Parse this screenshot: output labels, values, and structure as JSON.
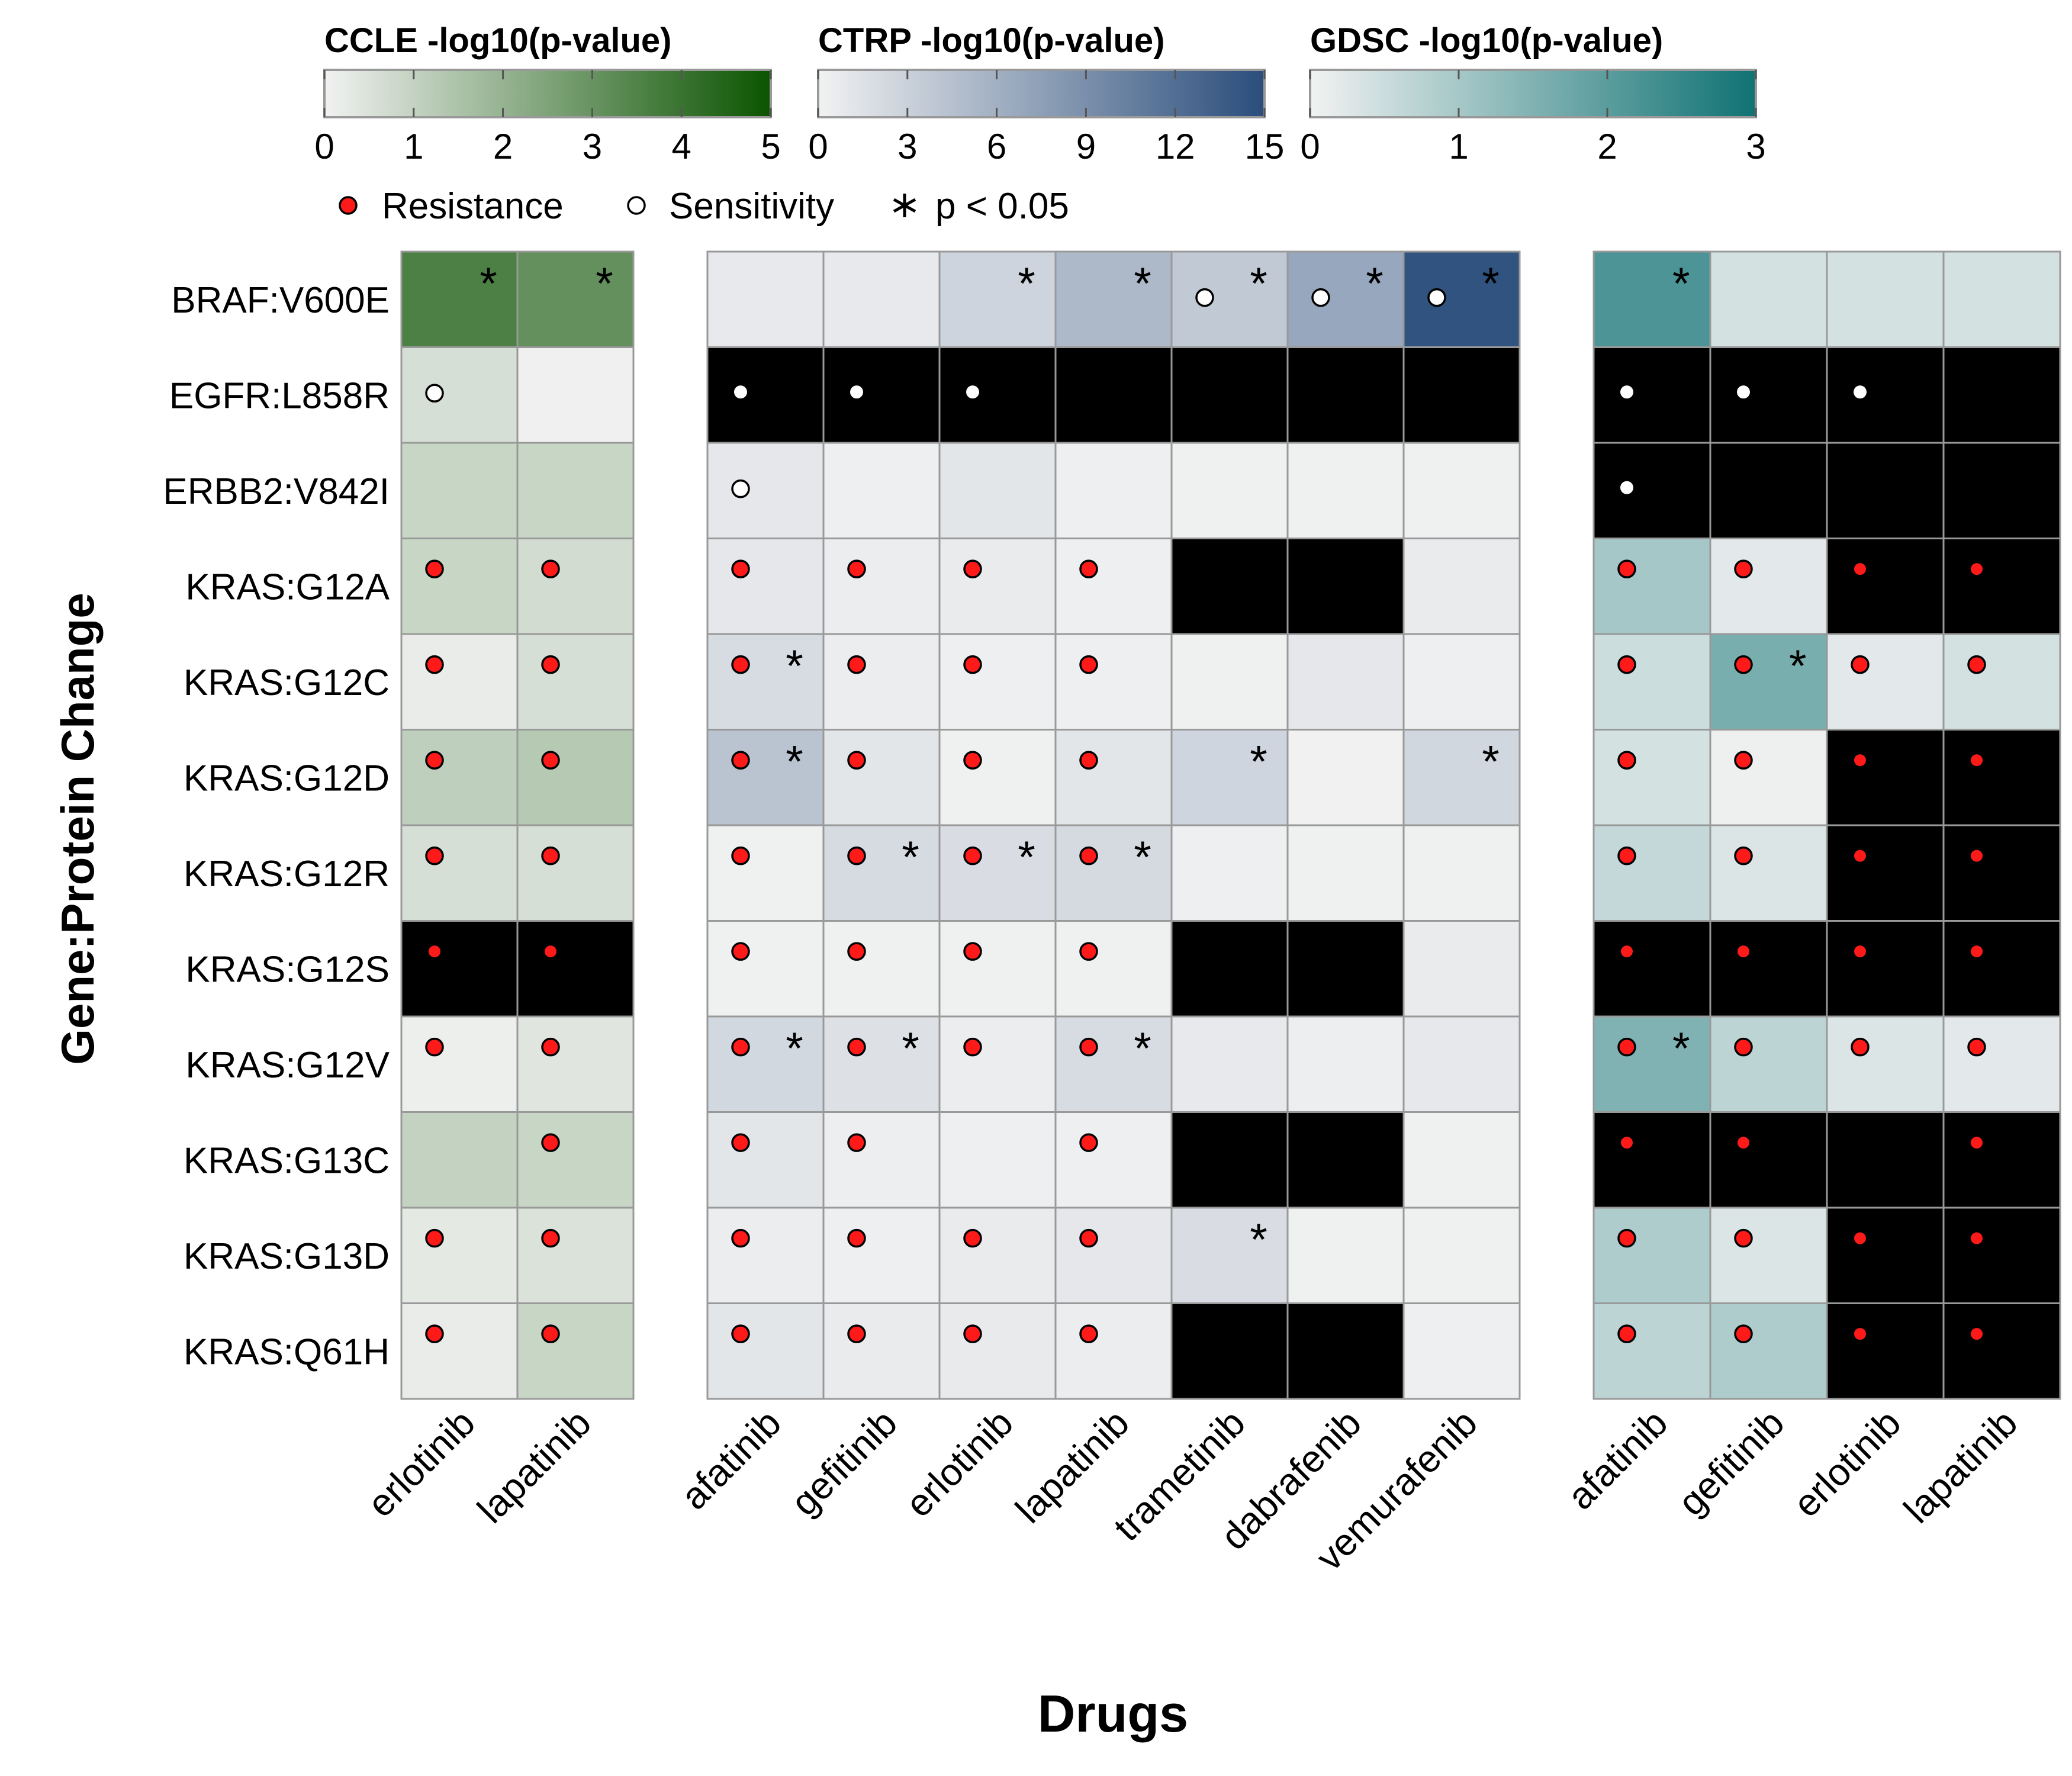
{
  "chart_data": {
    "type": "heatmap",
    "xlabel": "Drugs",
    "ylabel": "Gene:Protein Change",
    "rows": [
      "BRAF:V600E",
      "EGFR:L858R",
      "ERBB2:V842I",
      "KRAS:G12A",
      "KRAS:G12C",
      "KRAS:G12D",
      "KRAS:G12R",
      "KRAS:G12S",
      "KRAS:G12V",
      "KRAS:G13C",
      "KRAS:G13D",
      "KRAS:Q61H"
    ],
    "legend_items": [
      {
        "label": "Resistance",
        "marker": "filled-red-dot"
      },
      {
        "label": "Sensitivity",
        "marker": "open-dot"
      },
      {
        "label": "p < 0.05",
        "marker": "asterisk"
      }
    ],
    "missing_color": "#000000",
    "panels": [
      {
        "dataset": "CCLE",
        "colorbar_title": "CCLE -log10(p-value)",
        "colorbar_ticks": [
          "0",
          "1",
          "2",
          "3",
          "4",
          "5"
        ],
        "range": [
          0,
          5
        ],
        "color_low": "#F2F2F2",
        "color_high": "#0B5400",
        "drugs": [
          "erlotinib",
          "lapatinib"
        ],
        "values": [
          [
            3.6,
            3.1
          ],
          [
            0.6,
            0.05
          ],
          [
            0.9,
            0.9
          ],
          [
            0.9,
            0.7
          ],
          [
            0.2,
            0.6
          ],
          [
            1.1,
            1.3
          ],
          [
            0.6,
            0.6
          ],
          [
            null,
            null
          ],
          [
            0.1,
            0.4
          ],
          [
            1.0,
            0.9
          ],
          [
            0.3,
            0.5
          ],
          [
            0.2,
            0.9
          ]
        ],
        "markers": [
          [
            "",
            ""
          ],
          [
            "sensitivity",
            ""
          ],
          [
            "",
            ""
          ],
          [
            "resistance",
            "resistance"
          ],
          [
            "resistance",
            "resistance"
          ],
          [
            "resistance",
            "resistance"
          ],
          [
            "resistance",
            "resistance"
          ],
          [
            "resistance",
            "resistance"
          ],
          [
            "resistance",
            "resistance"
          ],
          [
            "",
            "resistance"
          ],
          [
            "resistance",
            "resistance"
          ],
          [
            "resistance",
            "resistance"
          ]
        ],
        "significant": [
          [
            true,
            true
          ],
          [
            false,
            false
          ],
          [
            false,
            false
          ],
          [
            false,
            false
          ],
          [
            false,
            false
          ],
          [
            false,
            false
          ],
          [
            false,
            false
          ],
          [
            false,
            false
          ],
          [
            false,
            false
          ],
          [
            false,
            false
          ],
          [
            false,
            false
          ],
          [
            false,
            false
          ]
        ]
      },
      {
        "dataset": "CTRP",
        "colorbar_title": "CTRP -log10(p-value)",
        "colorbar_ticks": [
          "0",
          "3",
          "6",
          "9",
          "12",
          "15"
        ],
        "range": [
          0,
          15
        ],
        "color_low": "#F2F2F2",
        "color_high": "#2A4D7C",
        "drugs": [
          "afatinib",
          "gefitinib",
          "erlotinib",
          "lapatinib",
          "trametinib",
          "dabrafenib",
          "vemurafenib"
        ],
        "values": [
          [
            0.8,
            0.8,
            2.7,
            5.2,
            3.7,
            6.8,
            14.5
          ],
          [
            null,
            null,
            null,
            null,
            null,
            null,
            null
          ],
          [
            1.0,
            0.3,
            1.1,
            0.3,
            0.2,
            0.2,
            0.2
          ],
          [
            1.0,
            0.5,
            0.6,
            0.3,
            null,
            null,
            0.6
          ],
          [
            2.0,
            0.5,
            0.3,
            0.3,
            0.2,
            1.0,
            0.3
          ],
          [
            4.2,
            1.1,
            0.2,
            1.1,
            2.6,
            0.1,
            2.5
          ],
          [
            0.2,
            2.1,
            1.9,
            2.2,
            0.3,
            0.2,
            0.2
          ],
          [
            0.2,
            0.2,
            0.2,
            0.2,
            null,
            null,
            0.6
          ],
          [
            2.4,
            1.6,
            0.5,
            2.0,
            0.8,
            0.4,
            0.9
          ],
          [
            1.1,
            0.4,
            0.3,
            0.3,
            null,
            null,
            0.2
          ],
          [
            0.5,
            0.3,
            0.6,
            1.0,
            1.9,
            0.2,
            0.2
          ],
          [
            1.1,
            0.6,
            0.7,
            0.5,
            null,
            null,
            0.3
          ]
        ],
        "markers": [
          [
            "",
            "",
            "",
            "",
            "sensitivity",
            "sensitivity",
            "sensitivity"
          ],
          [
            "sensitivity",
            "sensitivity",
            "sensitivity",
            "",
            "",
            "",
            ""
          ],
          [
            "sensitivity",
            "",
            "",
            "",
            "",
            "",
            ""
          ],
          [
            "resistance",
            "resistance",
            "resistance",
            "resistance",
            "",
            "",
            ""
          ],
          [
            "resistance",
            "resistance",
            "resistance",
            "resistance",
            "",
            "",
            ""
          ],
          [
            "resistance",
            "resistance",
            "resistance",
            "resistance",
            "",
            "",
            ""
          ],
          [
            "resistance",
            "resistance",
            "resistance",
            "resistance",
            "",
            "",
            ""
          ],
          [
            "resistance",
            "resistance",
            "resistance",
            "resistance",
            "",
            "",
            ""
          ],
          [
            "resistance",
            "resistance",
            "resistance",
            "resistance",
            "",
            "",
            ""
          ],
          [
            "resistance",
            "resistance",
            "",
            "resistance",
            "",
            "",
            ""
          ],
          [
            "resistance",
            "resistance",
            "resistance",
            "resistance",
            "",
            "",
            ""
          ],
          [
            "resistance",
            "resistance",
            "resistance",
            "resistance",
            "",
            "",
            ""
          ]
        ],
        "significant": [
          [
            false,
            false,
            true,
            true,
            true,
            true,
            true
          ],
          [
            false,
            false,
            false,
            false,
            false,
            false,
            false
          ],
          [
            false,
            false,
            false,
            false,
            false,
            false,
            false
          ],
          [
            false,
            false,
            false,
            false,
            false,
            false,
            false
          ],
          [
            true,
            false,
            false,
            false,
            false,
            false,
            false
          ],
          [
            true,
            false,
            false,
            false,
            true,
            false,
            true
          ],
          [
            false,
            true,
            true,
            true,
            false,
            false,
            false
          ],
          [
            false,
            false,
            false,
            false,
            false,
            false,
            false
          ],
          [
            true,
            true,
            false,
            true,
            false,
            false,
            false
          ],
          [
            false,
            false,
            false,
            false,
            false,
            false,
            false
          ],
          [
            false,
            false,
            false,
            false,
            true,
            false,
            false
          ],
          [
            false,
            false,
            false,
            false,
            false,
            false,
            false
          ]
        ]
      },
      {
        "dataset": "GDSC",
        "colorbar_title": "GDSC -log10(p-value)",
        "colorbar_ticks": [
          "0",
          "1",
          "2",
          "3"
        ],
        "range": [
          0,
          3
        ],
        "color_low": "#F2F2F2",
        "color_high": "#0F7273",
        "drugs": [
          "afatinib",
          "gefitinib",
          "erlotinib",
          "lapatinib"
        ],
        "values": [
          [
            2.2,
            0.4,
            0.4,
            0.4
          ],
          [
            null,
            null,
            null,
            null
          ],
          [
            null,
            null,
            null,
            null
          ],
          [
            1.0,
            0.2,
            null,
            null
          ],
          [
            0.5,
            1.6,
            0.2,
            0.4
          ],
          [
            0.4,
            0.05,
            null,
            null
          ],
          [
            0.6,
            0.3,
            null,
            null
          ],
          [
            null,
            null,
            null,
            null
          ],
          [
            1.5,
            0.7,
            0.3,
            0.2
          ],
          [
            null,
            null,
            null,
            null
          ],
          [
            0.9,
            0.3,
            null,
            null
          ],
          [
            0.7,
            0.9,
            null,
            null
          ]
        ],
        "markers": [
          [
            "",
            "",
            "",
            ""
          ],
          [
            "sensitivity",
            "sensitivity",
            "sensitivity",
            ""
          ],
          [
            "sensitivity",
            "",
            "",
            ""
          ],
          [
            "resistance",
            "resistance",
            "resistance",
            "resistance"
          ],
          [
            "resistance",
            "resistance",
            "resistance",
            "resistance"
          ],
          [
            "resistance",
            "resistance",
            "resistance",
            "resistance"
          ],
          [
            "resistance",
            "resistance",
            "resistance",
            "resistance"
          ],
          [
            "resistance",
            "resistance",
            "resistance",
            "resistance"
          ],
          [
            "resistance",
            "resistance",
            "resistance",
            "resistance"
          ],
          [
            "resistance",
            "resistance",
            "",
            "resistance"
          ],
          [
            "resistance",
            "resistance",
            "resistance",
            "resistance"
          ],
          [
            "resistance",
            "resistance",
            "resistance",
            "resistance"
          ]
        ],
        "significant": [
          [
            true,
            false,
            false,
            false
          ],
          [
            false,
            false,
            false,
            false
          ],
          [
            false,
            false,
            false,
            false
          ],
          [
            false,
            false,
            false,
            false
          ],
          [
            false,
            true,
            false,
            false
          ],
          [
            false,
            false,
            false,
            false
          ],
          [
            false,
            false,
            false,
            false
          ],
          [
            false,
            false,
            false,
            false
          ],
          [
            true,
            false,
            false,
            false
          ],
          [
            false,
            false,
            false,
            false
          ],
          [
            false,
            false,
            false,
            false
          ],
          [
            false,
            false,
            false,
            false
          ]
        ]
      }
    ]
  }
}
